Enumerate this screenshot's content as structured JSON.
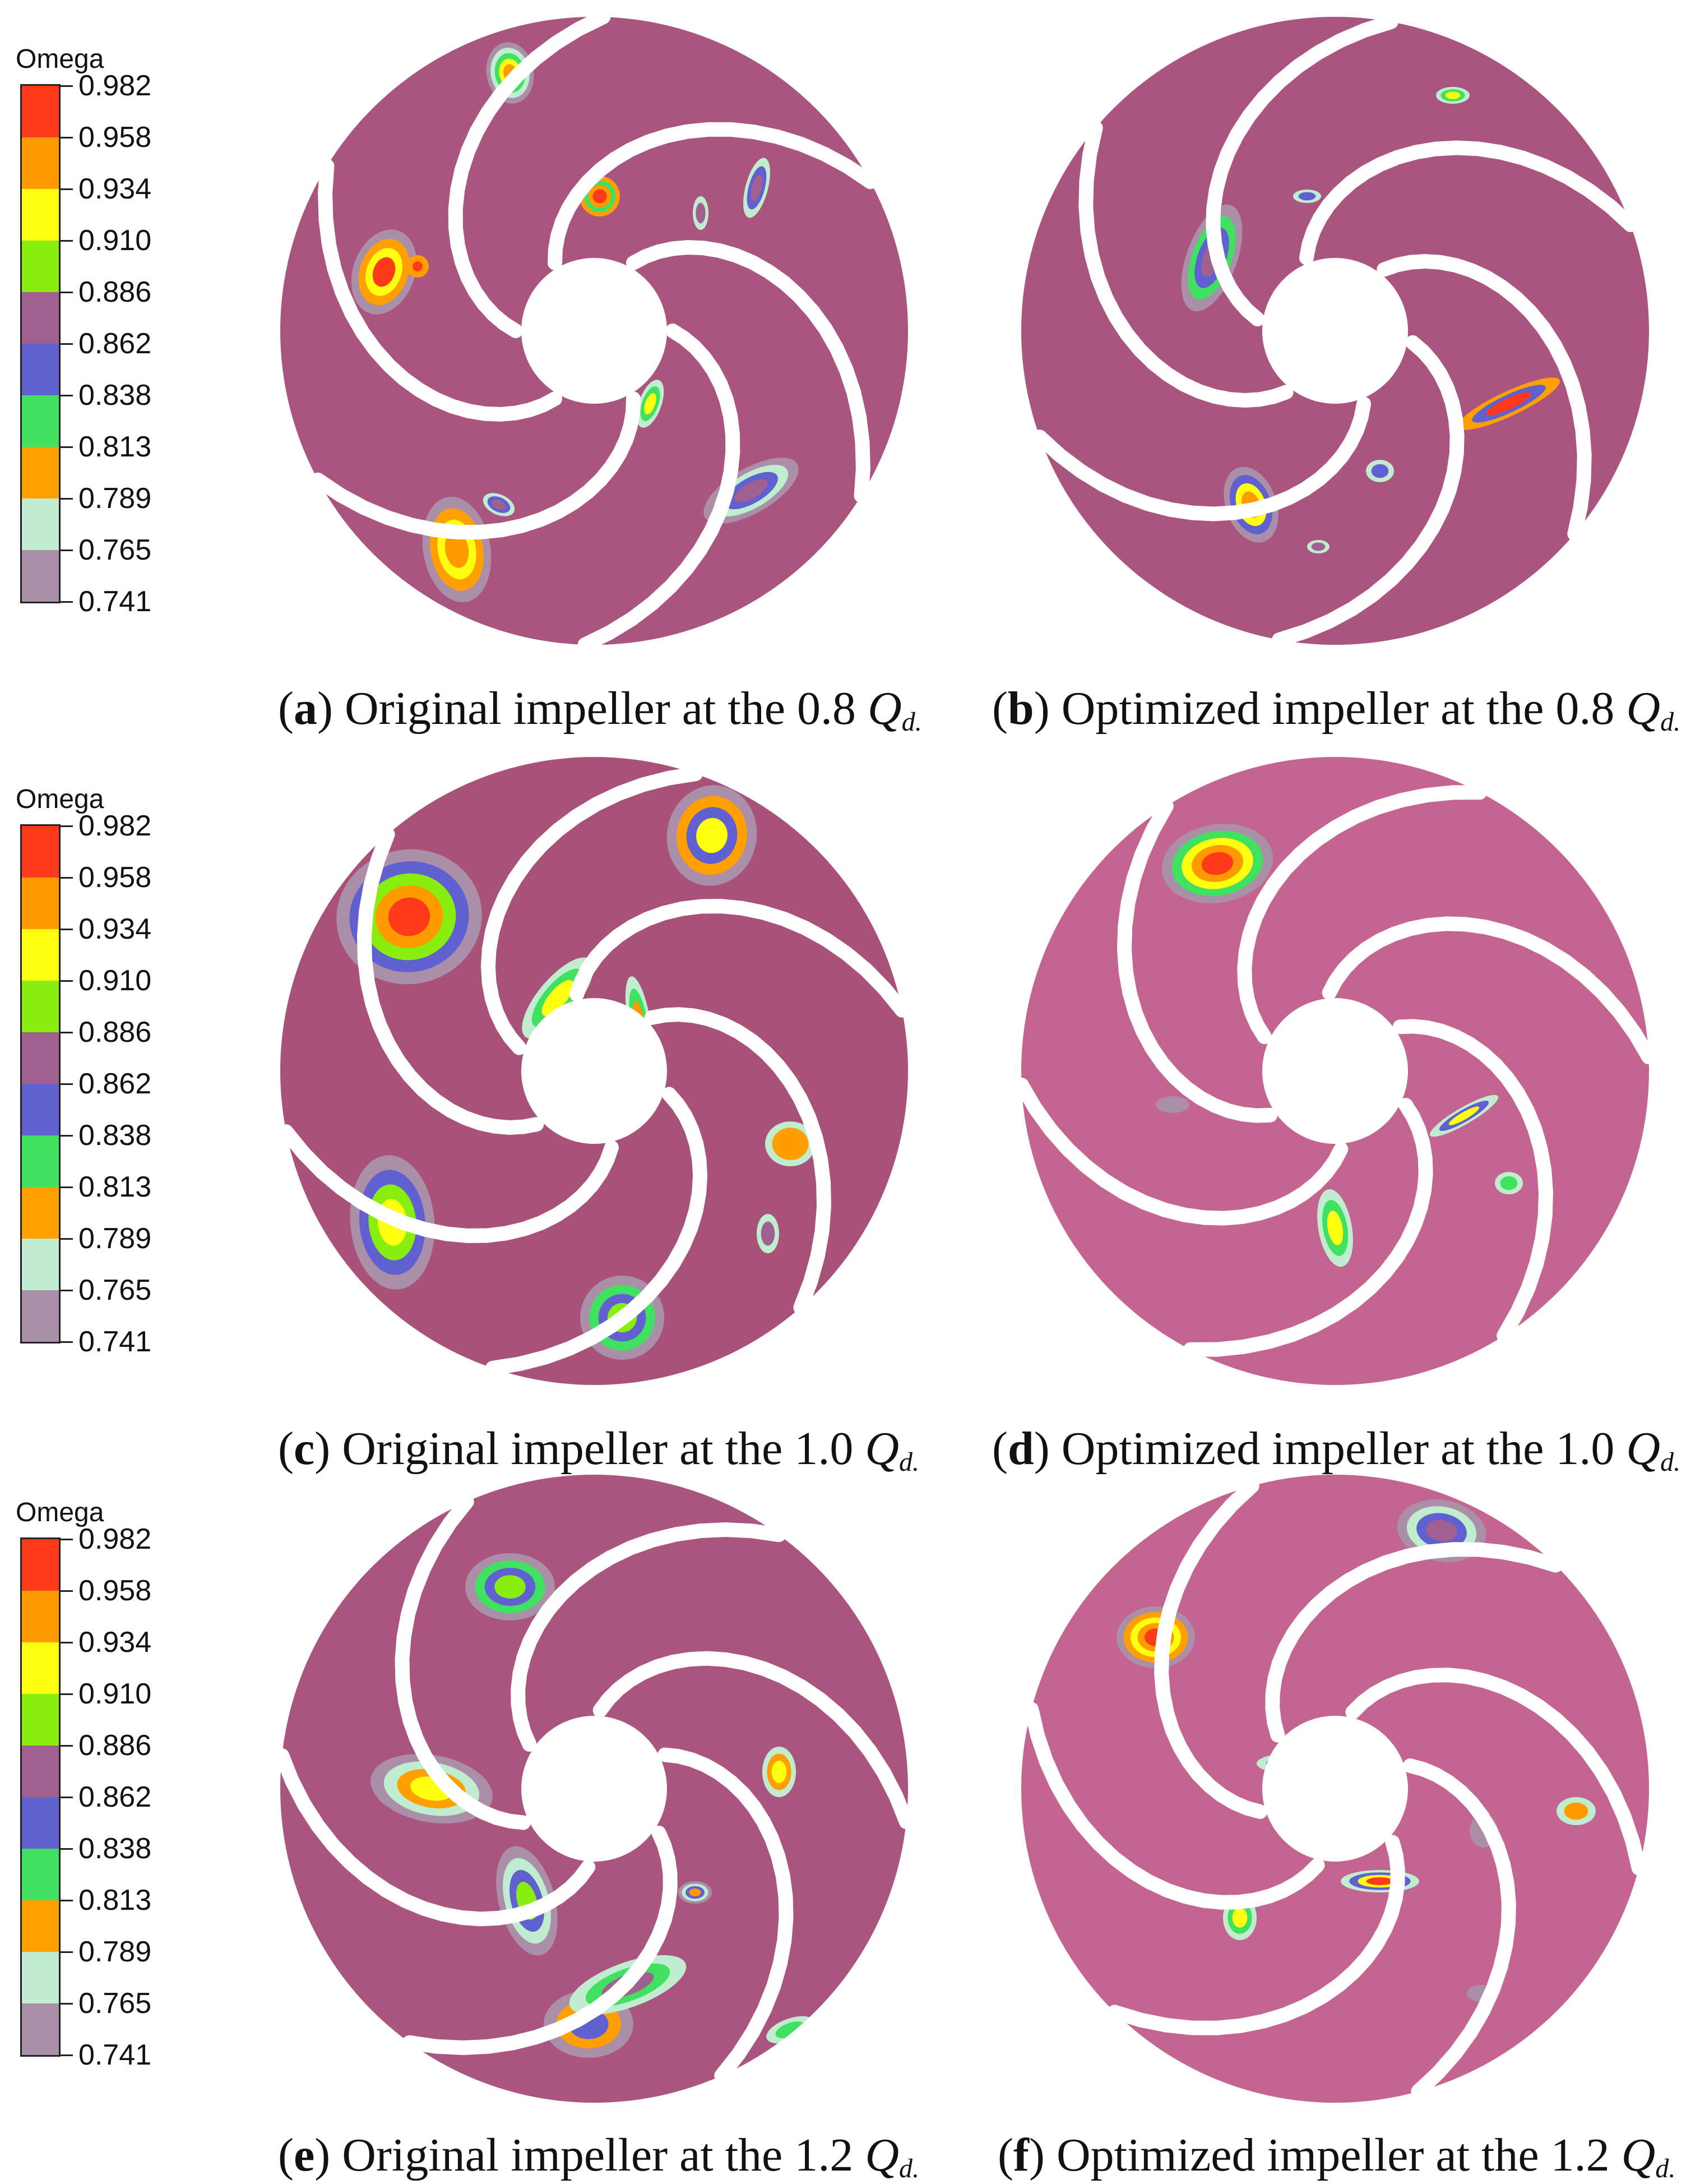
{
  "chart_data": {
    "type": "heatmap",
    "colorbar": {
      "title": "Omega",
      "ticks": [
        "0.982",
        "0.958",
        "0.934",
        "0.910",
        "0.886",
        "0.862",
        "0.838",
        "0.813",
        "0.789",
        "0.765",
        "0.741"
      ],
      "colors": [
        "#ff3a1a",
        "#ff9a00",
        "#ffff10",
        "#88ee10",
        "#a06090",
        "#6060d0",
        "#40e060",
        "#ffa000",
        "#c0ecd0",
        "#ab8fa8"
      ],
      "range": [
        0.741,
        0.982
      ]
    },
    "panels": [
      {
        "letter": "a",
        "label": "Original impeller at the",
        "flow": "0.8",
        "unit_main": "Q",
        "unit_sub": "d.",
        "background": "#aa5580",
        "background_level": "0.862"
      },
      {
        "letter": "b",
        "label": "Optimized impeller at the",
        "flow": "0.8",
        "unit_main": "Q",
        "unit_sub": "d.",
        "background": "#aa5580",
        "background_level": "0.862"
      },
      {
        "letter": "c",
        "label": "Original impeller at the",
        "flow": "1.0",
        "unit_main": "Q",
        "unit_sub": "d.",
        "background": "#a8527a",
        "background_level": "0.862"
      },
      {
        "letter": "d",
        "label": "Optimized impeller at the",
        "flow": "1.0",
        "unit_main": "Q",
        "unit_sub": "d.",
        "background": "#c46490",
        "background_level": "0.862"
      },
      {
        "letter": "e",
        "label": "Original impeller at the",
        "flow": "1.2",
        "unit_main": "Q",
        "unit_sub": "d.",
        "background": "#aa5580",
        "background_level": "0.862"
      },
      {
        "letter": "f",
        "label": "Optimized impeller at the",
        "flow": "1.2",
        "unit_main": "Q",
        "unit_sub": "d.",
        "background": "#c46490",
        "background_level": "0.862"
      }
    ]
  }
}
